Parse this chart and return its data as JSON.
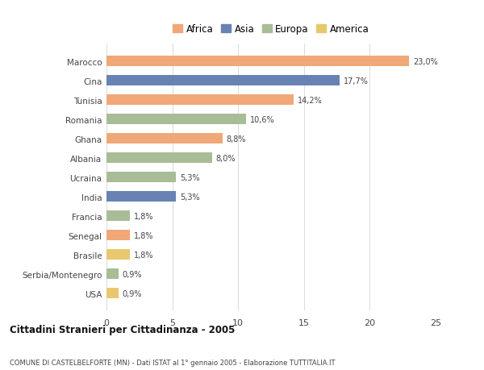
{
  "categories": [
    "Marocco",
    "Cina",
    "Tunisia",
    "Romania",
    "Ghana",
    "Albania",
    "Ucraina",
    "India",
    "Francia",
    "Senegal",
    "Brasile",
    "Serbia/Montenegro",
    "USA"
  ],
  "values": [
    23.0,
    17.7,
    14.2,
    10.6,
    8.8,
    8.0,
    5.3,
    5.3,
    1.8,
    1.8,
    1.8,
    0.9,
    0.9
  ],
  "labels": [
    "23,0%",
    "17,7%",
    "14,2%",
    "10,6%",
    "8,8%",
    "8,0%",
    "5,3%",
    "5,3%",
    "1,8%",
    "1,8%",
    "1,8%",
    "0,9%",
    "0,9%"
  ],
  "continents": [
    "Africa",
    "Asia",
    "Africa",
    "Europa",
    "Africa",
    "Europa",
    "Europa",
    "Asia",
    "Europa",
    "Africa",
    "America",
    "Europa",
    "America"
  ],
  "colors": {
    "Africa": "#F0A878",
    "Asia": "#6882B4",
    "Europa": "#A8BC96",
    "America": "#E8C86E"
  },
  "legend_order": [
    "Africa",
    "Asia",
    "Europa",
    "America"
  ],
  "title_main": "Cittadini Stranieri per Cittadinanza - 2005",
  "title_sub": "COMUNE DI CASTELBELFORTE (MN) - Dati ISTAT al 1° gennaio 2005 - Elaborazione TUTTITALIA.IT",
  "xlim": [
    0,
    25
  ],
  "xticks": [
    0,
    5,
    10,
    15,
    20,
    25
  ],
  "background_color": "#ffffff",
  "bar_height": 0.55,
  "grid_color": "#dddddd"
}
